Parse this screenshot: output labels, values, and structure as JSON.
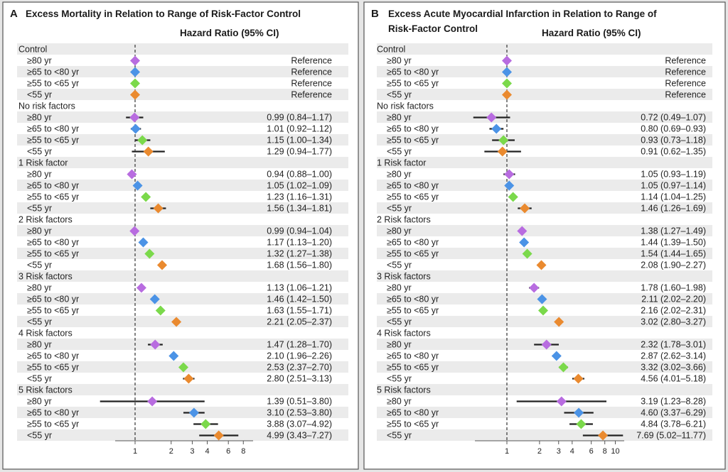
{
  "colors": {
    "age80": "#b86ce0",
    "age65": "#4b93e6",
    "age55": "#7bd94b",
    "age0": "#ea8a2f",
    "stripe": "#ebebeb",
    "background": "#e6e6e6"
  },
  "header_label": "Hazard Ratio (95% CI)",
  "chart_data": [
    {
      "type": "forest",
      "letter": "A",
      "title_lines": [
        "Excess Mortality in Relation to Range of Risk-Factor Control"
      ],
      "x_scale": "log",
      "xlim": [
        0.6,
        10
      ],
      "ticks": [
        1,
        2,
        3,
        4,
        6,
        8
      ],
      "reference_value": 1,
      "groups": [
        {
          "name": "Control",
          "rows": [
            {
              "label": "≥80 yr",
              "age": "age80",
              "hr": 1,
              "lo": null,
              "hi": null,
              "text": "Reference"
            },
            {
              "label": "≥65 to <80 yr",
              "age": "age65",
              "hr": 1,
              "lo": null,
              "hi": null,
              "text": "Reference"
            },
            {
              "label": "≥55 to <65 yr",
              "age": "age55",
              "hr": 1,
              "lo": null,
              "hi": null,
              "text": "Reference"
            },
            {
              "label": "<55 yr",
              "age": "age0",
              "hr": 1,
              "lo": null,
              "hi": null,
              "text": "Reference"
            }
          ]
        },
        {
          "name": "No risk factors",
          "rows": [
            {
              "label": "≥80 yr",
              "age": "age80",
              "hr": 0.99,
              "lo": 0.84,
              "hi": 1.17,
              "text": "0.99 (0.84–1.17)"
            },
            {
              "label": "≥65 to <80 yr",
              "age": "age65",
              "hr": 1.01,
              "lo": 0.92,
              "hi": 1.12,
              "text": "1.01 (0.92–1.12)"
            },
            {
              "label": "≥55 to <65 yr",
              "age": "age55",
              "hr": 1.15,
              "lo": 1.0,
              "hi": 1.34,
              "text": "1.15 (1.00–1.34)"
            },
            {
              "label": "<55 yr",
              "age": "age0",
              "hr": 1.29,
              "lo": 0.94,
              "hi": 1.77,
              "text": "1.29 (0.94–1.77)"
            }
          ]
        },
        {
          "name": "1 Risk factor",
          "rows": [
            {
              "label": "≥80 yr",
              "age": "age80",
              "hr": 0.94,
              "lo": 0.88,
              "hi": 1.0,
              "text": "0.94 (0.88–1.00)"
            },
            {
              "label": "≥65 to <80 yr",
              "age": "age65",
              "hr": 1.05,
              "lo": 1.02,
              "hi": 1.09,
              "text": "1.05 (1.02–1.09)"
            },
            {
              "label": "≥55 to <65 yr",
              "age": "age55",
              "hr": 1.23,
              "lo": 1.16,
              "hi": 1.31,
              "text": "1.23 (1.16–1.31)"
            },
            {
              "label": "<55 yr",
              "age": "age0",
              "hr": 1.56,
              "lo": 1.34,
              "hi": 1.81,
              "text": "1.56 (1.34–1.81)"
            }
          ]
        },
        {
          "name": "2 Risk factors",
          "rows": [
            {
              "label": "≥80 yr",
              "age": "age80",
              "hr": 0.99,
              "lo": 0.94,
              "hi": 1.04,
              "text": "0.99 (0.94–1.04)"
            },
            {
              "label": "≥65 to <80 yr",
              "age": "age65",
              "hr": 1.17,
              "lo": 1.13,
              "hi": 1.2,
              "text": "1.17 (1.13–1.20)"
            },
            {
              "label": "≥55 to <65 yr",
              "age": "age55",
              "hr": 1.32,
              "lo": 1.27,
              "hi": 1.38,
              "text": "1.32 (1.27–1.38)"
            },
            {
              "label": "<55 yr",
              "age": "age0",
              "hr": 1.68,
              "lo": 1.56,
              "hi": 1.8,
              "text": "1.68 (1.56–1.80)"
            }
          ]
        },
        {
          "name": "3 Risk factors",
          "rows": [
            {
              "label": "≥80 yr",
              "age": "age80",
              "hr": 1.13,
              "lo": 1.06,
              "hi": 1.21,
              "text": "1.13 (1.06–1.21)"
            },
            {
              "label": "≥65 to <80 yr",
              "age": "age65",
              "hr": 1.46,
              "lo": 1.42,
              "hi": 1.5,
              "text": "1.46 (1.42–1.50)"
            },
            {
              "label": "≥55 to <65 yr",
              "age": "age55",
              "hr": 1.63,
              "lo": 1.55,
              "hi": 1.71,
              "text": "1.63 (1.55–1.71)"
            },
            {
              "label": "<55 yr",
              "age": "age0",
              "hr": 2.21,
              "lo": 2.05,
              "hi": 2.37,
              "text": "2.21 (2.05–2.37)"
            }
          ]
        },
        {
          "name": "4 Risk factors",
          "rows": [
            {
              "label": "≥80 yr",
              "age": "age80",
              "hr": 1.47,
              "lo": 1.28,
              "hi": 1.7,
              "text": "1.47 (1.28–1.70)"
            },
            {
              "label": "≥65 to <80 yr",
              "age": "age65",
              "hr": 2.1,
              "lo": 1.96,
              "hi": 2.26,
              "text": "2.10 (1.96–2.26)"
            },
            {
              "label": "≥55 to <65 yr",
              "age": "age55",
              "hr": 2.53,
              "lo": 2.37,
              "hi": 2.7,
              "text": "2.53 (2.37–2.70)"
            },
            {
              "label": "<55 yr",
              "age": "age0",
              "hr": 2.8,
              "lo": 2.51,
              "hi": 3.13,
              "text": "2.80 (2.51–3.13)"
            }
          ]
        },
        {
          "name": "5 Risk factors",
          "rows": [
            {
              "label": "≥80 yr",
              "age": "age80",
              "hr": 1.39,
              "lo": 0.51,
              "hi": 3.8,
              "text": "1.39 (0.51–3.80)"
            },
            {
              "label": "≥65 to <80 yr",
              "age": "age65",
              "hr": 3.1,
              "lo": 2.53,
              "hi": 3.8,
              "text": "3.10 (2.53–3.80)"
            },
            {
              "label": "≥55 to <65 yr",
              "age": "age55",
              "hr": 3.88,
              "lo": 3.07,
              "hi": 4.92,
              "text": "3.88 (3.07–4.92)"
            },
            {
              "label": "<55 yr",
              "age": "age0",
              "hr": 4.99,
              "lo": 3.43,
              "hi": 7.27,
              "text": "4.99 (3.43–7.27)"
            }
          ]
        }
      ]
    },
    {
      "type": "forest",
      "letter": "B",
      "title_lines": [
        "Excess Acute Myocardial Infarction in Relation to Range of",
        "Risk-Factor Control"
      ],
      "x_scale": "log",
      "xlim": [
        0.5,
        11.5
      ],
      "ticks": [
        1,
        2,
        3,
        4,
        6,
        8,
        10
      ],
      "reference_value": 1,
      "groups": [
        {
          "name": "Control",
          "rows": [
            {
              "label": "≥80 yr",
              "age": "age80",
              "hr": 1,
              "lo": null,
              "hi": null,
              "text": "Reference"
            },
            {
              "label": "≥65 to <80 yr",
              "age": "age65",
              "hr": 1,
              "lo": null,
              "hi": null,
              "text": "Reference"
            },
            {
              "label": "≥55 to <65 yr",
              "age": "age55",
              "hr": 1,
              "lo": null,
              "hi": null,
              "text": "Reference"
            },
            {
              "label": "<55 yr",
              "age": "age0",
              "hr": 1,
              "lo": null,
              "hi": null,
              "text": "Reference"
            }
          ]
        },
        {
          "name": "No risk factors",
          "rows": [
            {
              "label": "≥80 yr",
              "age": "age80",
              "hr": 0.72,
              "lo": 0.49,
              "hi": 1.07,
              "text": "0.72 (0.49–1.07)"
            },
            {
              "label": "≥65 to <80 yr",
              "age": "age65",
              "hr": 0.8,
              "lo": 0.69,
              "hi": 0.93,
              "text": "0.80 (0.69–0.93)"
            },
            {
              "label": "≥55 to <65 yr",
              "age": "age55",
              "hr": 0.93,
              "lo": 0.73,
              "hi": 1.18,
              "text": "0.93 (0.73–1.18)"
            },
            {
              "label": "<55 yr",
              "age": "age0",
              "hr": 0.91,
              "lo": 0.62,
              "hi": 1.35,
              "text": "0.91 (0.62–1.35)"
            }
          ]
        },
        {
          "name": "1 Risk factor",
          "rows": [
            {
              "label": "≥80 yr",
              "age": "age80",
              "hr": 1.05,
              "lo": 0.93,
              "hi": 1.19,
              "text": "1.05 (0.93–1.19)"
            },
            {
              "label": "≥65 to <80 yr",
              "age": "age65",
              "hr": 1.05,
              "lo": 0.97,
              "hi": 1.14,
              "text": "1.05 (0.97–1.14)"
            },
            {
              "label": "≥55 to <65 yr",
              "age": "age55",
              "hr": 1.14,
              "lo": 1.04,
              "hi": 1.25,
              "text": "1.14 (1.04–1.25)"
            },
            {
              "label": "<55 yr",
              "age": "age0",
              "hr": 1.46,
              "lo": 1.26,
              "hi": 1.69,
              "text": "1.46 (1.26–1.69)"
            }
          ]
        },
        {
          "name": "2 Risk factors",
          "rows": [
            {
              "label": "≥80 yr",
              "age": "age80",
              "hr": 1.38,
              "lo": 1.27,
              "hi": 1.49,
              "text": "1.38 (1.27–1.49)"
            },
            {
              "label": "≥65 to <80 yr",
              "age": "age65",
              "hr": 1.44,
              "lo": 1.39,
              "hi": 1.5,
              "text": "1.44 (1.39–1.50)"
            },
            {
              "label": "≥55 to <65 yr",
              "age": "age55",
              "hr": 1.54,
              "lo": 1.44,
              "hi": 1.65,
              "text": "1.54 (1.44–1.65)"
            },
            {
              "label": "<55 yr",
              "age": "age0",
              "hr": 2.08,
              "lo": 1.9,
              "hi": 2.27,
              "text": "2.08 (1.90–2.27)"
            }
          ]
        },
        {
          "name": "3 Risk factors",
          "rows": [
            {
              "label": "≥80 yr",
              "age": "age80",
              "hr": 1.78,
              "lo": 1.6,
              "hi": 1.98,
              "text": "1.78 (1.60–1.98)"
            },
            {
              "label": "≥65 to <80 yr",
              "age": "age65",
              "hr": 2.11,
              "lo": 2.02,
              "hi": 2.2,
              "text": "2.11 (2.02–2.20)"
            },
            {
              "label": "≥55 to <65 yr",
              "age": "age55",
              "hr": 2.16,
              "lo": 2.02,
              "hi": 2.31,
              "text": "2.16 (2.02–2.31)"
            },
            {
              "label": "<55 yr",
              "age": "age0",
              "hr": 3.02,
              "lo": 2.8,
              "hi": 3.27,
              "text": "3.02 (2.80–3.27)"
            }
          ]
        },
        {
          "name": "4 Risk factors",
          "rows": [
            {
              "label": "≥80 yr",
              "age": "age80",
              "hr": 2.32,
              "lo": 1.78,
              "hi": 3.01,
              "text": "2.32 (1.78–3.01)"
            },
            {
              "label": "≥65 to <80 yr",
              "age": "age65",
              "hr": 2.87,
              "lo": 2.62,
              "hi": 3.14,
              "text": "2.87 (2.62–3.14)"
            },
            {
              "label": "≥55 to <65 yr",
              "age": "age55",
              "hr": 3.32,
              "lo": 3.02,
              "hi": 3.66,
              "text": "3.32 (3.02–3.66)"
            },
            {
              "label": "<55 yr",
              "age": "age0",
              "hr": 4.56,
              "lo": 4.01,
              "hi": 5.18,
              "text": "4.56 (4.01–5.18)"
            }
          ]
        },
        {
          "name": "5 Risk factors",
          "rows": [
            {
              "label": "≥80 yr",
              "age": "age80",
              "hr": 3.19,
              "lo": 1.23,
              "hi": 8.28,
              "text": "3.19 (1.23–8.28)"
            },
            {
              "label": "≥65 to <80 yr",
              "age": "age65",
              "hr": 4.6,
              "lo": 3.37,
              "hi": 6.29,
              "text": "4.60 (3.37–6.29)"
            },
            {
              "label": "≥55 to <65 yr",
              "age": "age55",
              "hr": 4.84,
              "lo": 3.78,
              "hi": 6.21,
              "text": "4.84 (3.78–6.21)"
            },
            {
              "label": "<55 yr",
              "age": "age0",
              "hr": 7.69,
              "lo": 5.02,
              "hi": 11.77,
              "text": "7.69 (5.02–11.77)"
            }
          ]
        }
      ]
    }
  ]
}
